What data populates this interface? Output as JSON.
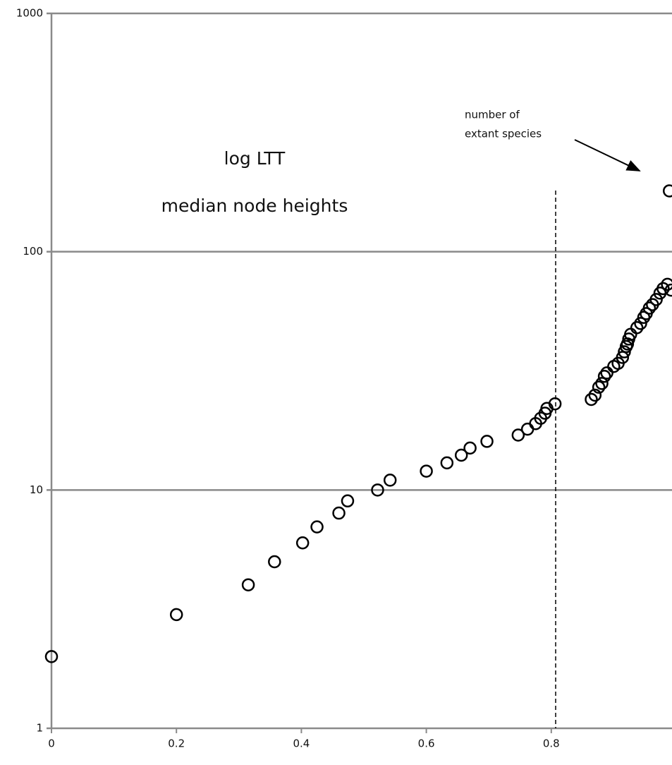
{
  "chart_data": {
    "type": "scatter",
    "annotations": [
      "log LTT",
      "median node heights",
      "number of",
      "extant species"
    ],
    "x": [
      0,
      0.2,
      0.315,
      0.357,
      0.402,
      0.425,
      0.46,
      0.474,
      0.522,
      0.542,
      0.6,
      0.633,
      0.656,
      0.67,
      0.697,
      0.747,
      0.762,
      0.775,
      0.783,
      0.79,
      0.793,
      0.806,
      0.864,
      0.87,
      0.876,
      0.881,
      0.885,
      0.889,
      0.9,
      0.907,
      0.914,
      0.917,
      0.92,
      0.922,
      0.924,
      0.927,
      0.937,
      0.943,
      0.948,
      0.952,
      0.957,
      0.962,
      0.968,
      0.974,
      0.979,
      0.986,
      0.992,
      0.989
    ],
    "values": [
      2,
      3,
      4,
      5,
      6,
      7,
      8,
      9,
      10,
      11,
      12,
      13,
      14,
      15,
      16,
      17,
      18,
      19,
      20,
      21,
      22,
      23,
      24,
      25,
      27,
      28,
      30,
      31,
      33,
      34,
      36,
      38,
      40,
      41,
      43,
      45,
      48,
      50,
      53,
      55,
      58,
      60,
      63,
      67,
      70,
      73,
      69,
      180
    ],
    "color": "#000000",
    "vline": 0.807,
    "xlim": [
      0,
      1
    ],
    "xticks": [
      0,
      0.2,
      0.4,
      0.6,
      0.8,
      1
    ],
    "ylim": [
      1,
      1000
    ],
    "yticks": [
      1,
      10,
      100,
      1000
    ],
    "log_y": true,
    "grid": true
  }
}
